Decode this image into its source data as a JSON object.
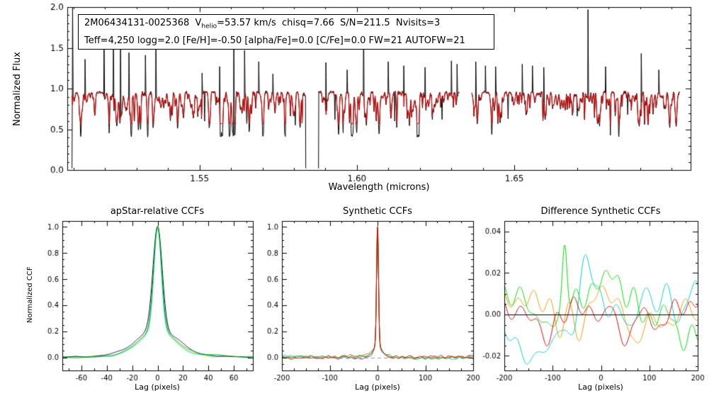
{
  "annotation": {
    "line1_prefix": "2M06434131-0025368  V",
    "line1_sub": "helio",
    "line1_suffix": "=53.57 km/s  chisq=7.66  S/N=211.5  Nvisits=3",
    "line2": "Teff=4,250 logg=2.0 [Fe/H]=-0.50 [alpha/Fe]=0.0 [C/Fe]=0.0 FW=21 AUTOFW=21"
  },
  "chart_data": [
    {
      "type": "line",
      "title": "",
      "xlabel": "Wavelength (microns)",
      "ylabel": "Normalized Flux",
      "xlim": [
        1.508,
        1.706
      ],
      "ylim": [
        0.0,
        2.0
      ],
      "xticks": [
        1.55,
        1.6,
        1.65
      ],
      "xtick_labels": [
        "1.55",
        "1.60",
        "1.65"
      ],
      "yticks": [
        0.0,
        0.5,
        1.0,
        1.5,
        2.0
      ],
      "ytick_labels": [
        "0.0",
        "0.5",
        "1.0",
        "1.5",
        "2.0"
      ],
      "continuum": 0.955,
      "segments": [
        [
          1.5095,
          1.5838
        ],
        [
          1.5878,
          1.6325
        ],
        [
          1.6365,
          1.7025
        ]
      ],
      "series": [
        {
          "name": "observed-spectrum",
          "color": "#000000"
        },
        {
          "name": "best-fit-synthetic-spectrum",
          "color": "#dd0000"
        }
      ],
      "sky_emission_lines": [
        [
          1.5097,
          2.0
        ],
        [
          1.5136,
          1.36
        ],
        [
          1.5197,
          1.72
        ],
        [
          1.5226,
          1.78
        ],
        [
          1.5249,
          1.76
        ],
        [
          1.5276,
          1.44
        ],
        [
          1.5328,
          1.41
        ],
        [
          1.5361,
          1.6
        ],
        [
          1.5508,
          1.19
        ],
        [
          1.5564,
          1.27
        ],
        [
          1.5609,
          1.79
        ],
        [
          1.5643,
          1.47
        ],
        [
          1.5688,
          1.33
        ],
        [
          1.5733,
          1.18
        ],
        [
          1.5901,
          1.32
        ],
        [
          1.5969,
          1.23
        ],
        [
          1.6021,
          1.86
        ],
        [
          1.6099,
          1.33
        ],
        [
          1.6149,
          1.28
        ],
        [
          1.6216,
          1.26
        ],
        [
          1.63,
          1.34
        ],
        [
          1.6318,
          1.3
        ],
        [
          1.6378,
          1.33
        ],
        [
          1.6408,
          1.28
        ],
        [
          1.6441,
          1.27
        ],
        [
          1.6525,
          1.3
        ],
        [
          1.6558,
          1.28
        ],
        [
          1.6594,
          1.26
        ],
        [
          1.6734,
          1.97
        ],
        [
          1.679,
          1.27
        ],
        [
          1.6903,
          1.43
        ],
        [
          1.6959,
          1.23
        ]
      ],
      "deep_absorption_lines": [
        [
          1.5516,
          0.6
        ],
        [
          1.565,
          0.57
        ],
        [
          1.5804,
          0.55
        ],
        [
          1.593,
          0.62
        ],
        [
          1.5988,
          0.45
        ],
        [
          1.612,
          0.6
        ],
        [
          1.627,
          0.62
        ],
        [
          1.648,
          0.63
        ],
        [
          1.67,
          0.66
        ],
        [
          1.686,
          0.68
        ]
      ]
    },
    {
      "type": "line",
      "title": "apStar-relative CCFs",
      "xlabel": "Lag (pixels)",
      "ylabel": "Normalized CCF",
      "xlim": [
        -75,
        75
      ],
      "ylim": [
        -0.1,
        1.045
      ],
      "xticks": [
        -60,
        -40,
        -20,
        0,
        20,
        40,
        60
      ],
      "xtick_labels": [
        "-60",
        "-40",
        "-20",
        "0",
        "20",
        "40",
        "60"
      ],
      "yticks": [
        0.0,
        0.2,
        0.4,
        0.6,
        0.8,
        1.0
      ],
      "ytick_labels": [
        "0.0",
        "0.2",
        "0.4",
        "0.6",
        "0.8",
        "1.0"
      ],
      "noise_amplitude": 0.01,
      "noise_harmonics": 18,
      "peak": {
        "center": 0,
        "core_height": 0.78,
        "core_sigma": 3.1,
        "wing_height": 0.19,
        "wing_sigma": 13,
        "broad_height": 0.03,
        "broad_sigma": 32
      },
      "series": [
        {
          "name": "ccf-visit-yellow",
          "color": "#c8cc00",
          "sigma_scale": 1.0
        },
        {
          "name": "ccf-visit-cyan",
          "color": "#00dede",
          "sigma_scale": 0.93
        },
        {
          "name": "ccf-combined-navy",
          "color": "#000050",
          "sigma_scale": 1.16
        },
        {
          "name": "ccf-visit-green",
          "color": "#00b400",
          "sigma_scale": 1.0
        }
      ]
    },
    {
      "type": "line",
      "title": "Synthetic CCFs",
      "xlabel": "Lag (pixels)",
      "ylabel": "",
      "xlim": [
        -200,
        200
      ],
      "ylim": [
        -0.1,
        1.045
      ],
      "xticks": [
        -200,
        -100,
        0,
        100,
        200
      ],
      "xtick_labels": [
        "-200",
        "-100",
        "0",
        "100",
        "200"
      ],
      "yticks": [
        0.0,
        0.2,
        0.4,
        0.6,
        0.8,
        1.0
      ],
      "ytick_labels": [
        "0.0",
        "0.2",
        "0.4",
        "0.6",
        "0.8",
        "1.0"
      ],
      "noise_amplitude": 0.016,
      "noise_harmonics": 60,
      "zero_line": {
        "y": 0.0,
        "style": "dashed",
        "color": "#999999"
      },
      "peak": {
        "center": 0,
        "core_height": 0.9,
        "core_sigma": 2.0,
        "wing_height": 0.08,
        "wing_sigma": 8,
        "broad_height": 0.02,
        "broad_sigma": 20
      },
      "series": [
        {
          "name": "synthetic-ccf-green",
          "color": "#00a000"
        },
        {
          "name": "synthetic-ccf-cyan",
          "color": "#00c8c8"
        },
        {
          "name": "synthetic-ccf-orange",
          "color": "#cc6600"
        },
        {
          "name": "synthetic-ccf-red",
          "color": "#cc0000"
        }
      ]
    },
    {
      "type": "line",
      "title": "Difference Synthetic CCFs",
      "xlabel": "Lag (pixels)",
      "ylabel": "",
      "xlim": [
        -200,
        200
      ],
      "ylim": [
        -0.027,
        0.045
      ],
      "xticks": [
        -200,
        -100,
        0,
        100,
        200
      ],
      "xtick_labels": [
        "-200",
        "-100",
        "0",
        "100",
        "200"
      ],
      "yticks": [
        -0.02,
        0.0,
        0.02,
        0.04
      ],
      "ytick_labels": [
        "-0.02",
        "0.00",
        "0.02",
        "0.04"
      ],
      "noise_amplitude": 0.02,
      "noise_harmonics": 22,
      "zero_line": {
        "y": 0.0,
        "style": "solid",
        "color": "#000000"
      },
      "series": [
        {
          "name": "diff-ccf-orange",
          "color": "#ee9900"
        },
        {
          "name": "diff-ccf-cyan",
          "color": "#00cccc",
          "bump": {
            "center": -35,
            "height": 0.016,
            "sigma": 18
          }
        },
        {
          "name": "diff-ccf-green",
          "color": "#00dd00",
          "bump": {
            "center": -75,
            "height": 0.034,
            "sigma": 5
          }
        },
        {
          "name": "diff-ccf-red",
          "color": "#dd0000"
        }
      ]
    }
  ]
}
